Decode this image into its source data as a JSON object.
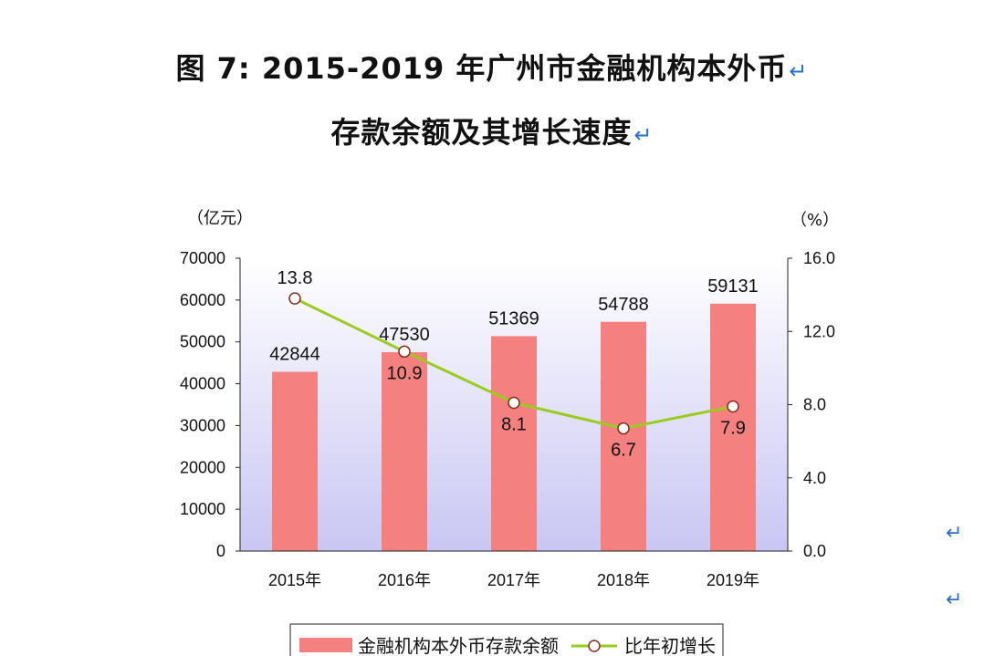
{
  "document": {
    "title_line1": "图 7:   2015-2019 年广州市金融机构本外币",
    "title_line2": "存款余额及其增长速度",
    "return_mark": "↵"
  },
  "chart_data": {
    "type": "bar",
    "categories": [
      "2015年",
      "2016年",
      "2017年",
      "2018年",
      "2019年"
    ],
    "series": [
      {
        "name": "金融机构本外币存款余额",
        "type": "bar",
        "axis": "left",
        "color": "#f48080",
        "values": [
          42844,
          47530,
          51369,
          54788,
          59131
        ],
        "labels": [
          "42844",
          "47530",
          "51369",
          "54788",
          "59131"
        ]
      },
      {
        "name": "比年初增长",
        "type": "line",
        "axis": "right",
        "color": "#99cc1f",
        "values": [
          13.8,
          10.9,
          8.1,
          6.7,
          7.9
        ],
        "labels": [
          "13.8",
          "10.9",
          "8.1",
          "6.7",
          "7.9"
        ]
      }
    ],
    "ylabel_left": "（亿元）",
    "ylabel_right": "（%）",
    "ylim_left": [
      0,
      70000
    ],
    "ylim_right": [
      0,
      16
    ],
    "yticks_left": [
      "0",
      "10000",
      "20000",
      "30000",
      "40000",
      "50000",
      "60000",
      "70000"
    ],
    "yticks_right": [
      "0.0",
      "4.0",
      "8.0",
      "12.0",
      "16.0"
    ],
    "grid": false,
    "legend_position": "bottom",
    "plot_background": "gradient white to lavender"
  }
}
